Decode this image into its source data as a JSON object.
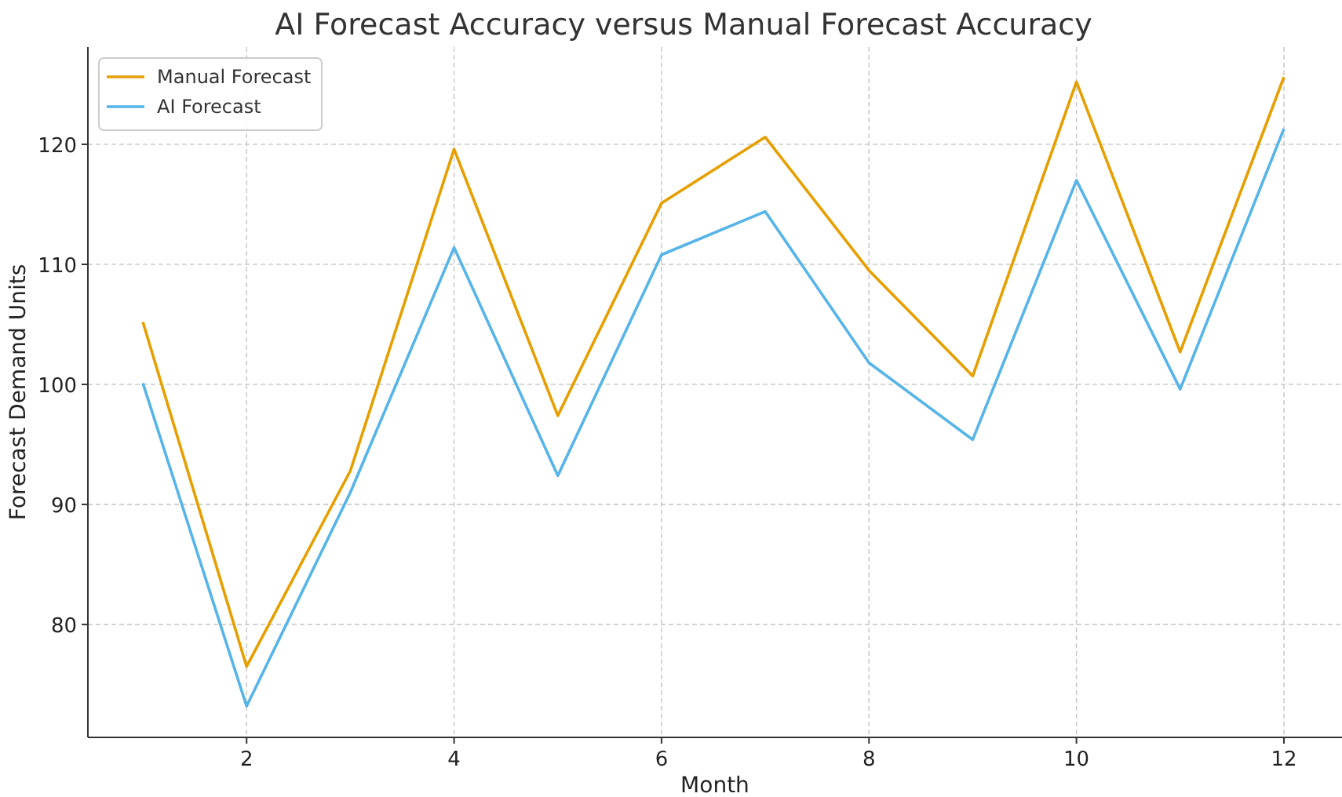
{
  "chart_data": {
    "type": "line",
    "title": "AI Forecast Accuracy versus Manual Forecast Accuracy",
    "xlabel": "Month",
    "ylabel": "Forecast Demand Units",
    "x": [
      1,
      2,
      3,
      4,
      5,
      6,
      7,
      8,
      9,
      10,
      11,
      12
    ],
    "series": [
      {
        "name": "Manual Forecast",
        "color": "#e69f00",
        "values": [
          105.2,
          76.5,
          92.8,
          119.6,
          97.4,
          115.1,
          120.6,
          109.5,
          100.7,
          125.2,
          102.7,
          125.6
        ]
      },
      {
        "name": "AI Forecast",
        "color": "#56b4e9",
        "values": [
          100.1,
          73.2,
          91.0,
          111.4,
          92.4,
          110.8,
          114.4,
          101.8,
          95.4,
          117.0,
          99.6,
          121.3
        ]
      }
    ],
    "xlim": [
      0.47,
      12.56
    ],
    "xticks": [
      2,
      4,
      6,
      8,
      10,
      12
    ],
    "ylim": [
      70.6,
      128.1
    ],
    "yticks": [
      80,
      90,
      100,
      110,
      120
    ],
    "grid": true,
    "legend": "top left",
    "line_style": "solid",
    "marker": "none"
  }
}
